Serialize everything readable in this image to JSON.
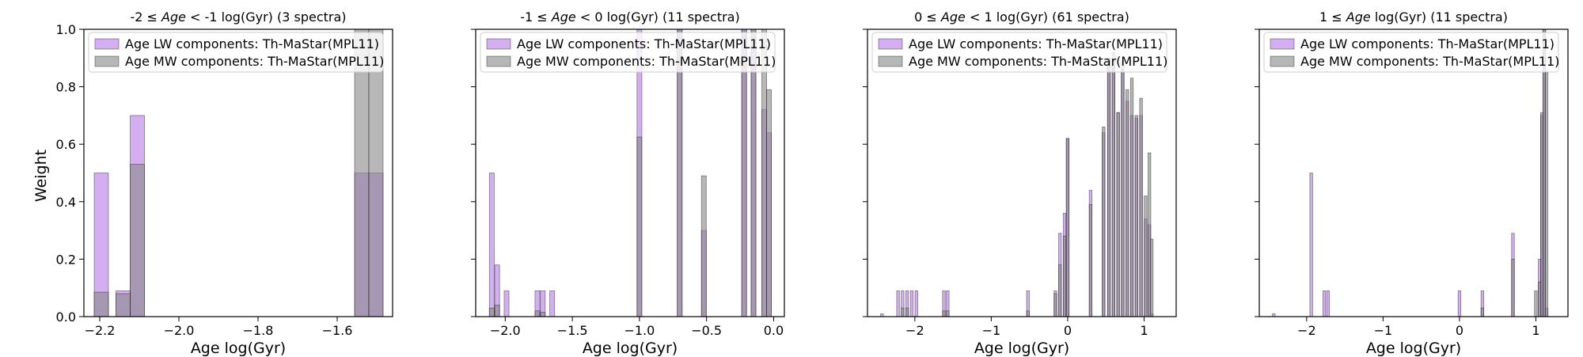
{
  "figure": {
    "ylabel": "Weight"
  },
  "legend": {
    "lw_label": "Age LW components: Th-MaStar(MPL11)",
    "mw_label": "Age MW components: Th-MaStar(MPL11)"
  },
  "colors": {
    "lw": "#b87ee8",
    "mw": "#8a8a8a",
    "overlap": "#7f5aa0"
  },
  "chart_data": [
    {
      "type": "bar",
      "title_parts": [
        "-2 ≤ ",
        "Age",
        " < -1 log(Gyr) (3 spectra)"
      ],
      "xlabel": "Age log(Gyr)",
      "ylabel": "Weight",
      "xlim": [
        -2.24,
        -1.46
      ],
      "ylim": [
        0,
        1.0
      ],
      "xticks": [
        -2.2,
        -2.0,
        -1.8,
        -1.6
      ],
      "xticklabels": [
        "−2.2",
        "−2.0",
        "−1.8",
        "−1.6"
      ],
      "yticks": [
        0,
        0.2,
        0.4,
        0.6,
        0.8,
        1.0
      ],
      "yticklabels": [
        "0.0",
        "0.2",
        "0.4",
        "0.6",
        "0.8",
        "1.0"
      ],
      "show_yticklabels": true,
      "bin_width": 0.036,
      "legend_position": "upper left",
      "series": [
        {
          "name": "Age LW components: Th-MaStar(MPL11)",
          "x": [
            -2.196,
            -2.141,
            -2.105,
            -1.538,
            -1.502
          ],
          "values": [
            0.5,
            0.09,
            0.7,
            0.5,
            0.5
          ]
        },
        {
          "name": "Age MW components: Th-MaStar(MPL11)",
          "x": [
            -2.196,
            -2.141,
            -2.105,
            -1.538,
            -1.502
          ],
          "values": [
            0.085,
            0.08,
            0.53,
            1.0,
            1.0
          ]
        }
      ]
    },
    {
      "type": "bar",
      "title_parts": [
        "-1 ≤ ",
        "Age",
        " < 0 log(Gyr) (11 spectra)"
      ],
      "xlabel": "Age log(Gyr)",
      "ylabel": "",
      "xlim": [
        -2.22,
        0.08
      ],
      "ylim": [
        0,
        1.0
      ],
      "xticks": [
        -2.0,
        -1.5,
        -1.0,
        -0.5,
        0.0
      ],
      "xticklabels": [
        "−2.0",
        "−1.5",
        "−1.0",
        "−0.5",
        "0.0"
      ],
      "yticks": [
        0,
        0.2,
        0.4,
        0.6,
        0.8,
        1.0
      ],
      "show_yticklabels": false,
      "bin_width": 0.036,
      "legend_position": "upper left",
      "series": [
        {
          "name": "Age LW components: Th-MaStar(MPL11)",
          "x": [
            -2.1,
            -2.06,
            -1.99,
            -1.76,
            -1.72,
            -1.65,
            -1.0,
            -0.7,
            -0.52,
            -0.22,
            -0.15,
            -0.07,
            -0.035
          ],
          "values": [
            0.5,
            0.18,
            0.09,
            0.09,
            0.09,
            0.09,
            1.0,
            1.0,
            0.3,
            1.0,
            1.0,
            0.72,
            0.64
          ]
        },
        {
          "name": "Age MW components: Th-MaStar(MPL11)",
          "x": [
            -2.1,
            -2.06,
            -1.76,
            -1.72,
            -1.0,
            -0.7,
            -0.52,
            -0.22,
            -0.15,
            -0.07,
            -0.035
          ],
          "values": [
            0.03,
            0.04,
            0.02,
            0.015,
            0.625,
            1.0,
            0.49,
            1.0,
            1.0,
            1.0,
            0.79
          ]
        }
      ]
    },
    {
      "type": "bar",
      "title_parts": [
        "0 ≤ ",
        "Age",
        " < 1 log(Gyr) (61 spectra)"
      ],
      "xlabel": "Age log(Gyr)",
      "ylabel": "",
      "xlim": [
        -2.62,
        1.42
      ],
      "ylim": [
        0,
        1.0
      ],
      "xticks": [
        -2,
        -1,
        0,
        1
      ],
      "xticklabels": [
        "−2",
        "−1",
        "0",
        "1"
      ],
      "yticks": [
        0,
        0.2,
        0.4,
        0.6,
        0.8,
        1.0
      ],
      "show_yticklabels": false,
      "bin_width": 0.036,
      "legend_position": "upper left",
      "series": [
        {
          "name": "Age LW components: Th-MaStar(MPL11)",
          "x": [
            -2.43,
            -2.22,
            -2.16,
            -2.1,
            -2.04,
            -1.98,
            -1.62,
            -1.57,
            -0.52,
            -0.16,
            -0.1,
            -0.04,
            0.0,
            0.3,
            0.47,
            0.54,
            0.6,
            0.66,
            0.72,
            0.78,
            0.84,
            0.9,
            0.96,
            1.02,
            1.07,
            1.1
          ],
          "values": [
            0.01,
            0.09,
            0.09,
            0.09,
            0.09,
            0.09,
            0.09,
            0.09,
            0.09,
            0.09,
            0.29,
            0.36,
            0.62,
            0.44,
            0.64,
            0.9,
            0.89,
            0.71,
            0.86,
            0.75,
            0.7,
            0.69,
            0.7,
            0.34,
            0.32,
            0.01
          ]
        },
        {
          "name": "Age MW components: Th-MaStar(MPL11)",
          "x": [
            -2.16,
            -2.1,
            -1.62,
            -1.57,
            -0.52,
            -0.16,
            -0.1,
            -0.04,
            0.0,
            0.3,
            0.47,
            0.54,
            0.6,
            0.66,
            0.72,
            0.78,
            0.84,
            0.9,
            0.96,
            1.02,
            1.07,
            1.1
          ],
          "values": [
            0.03,
            0.03,
            0.02,
            0.02,
            0.02,
            0.08,
            0.18,
            0.28,
            0.62,
            0.39,
            0.66,
            0.9,
            0.92,
            0.71,
            0.89,
            0.79,
            0.83,
            0.7,
            0.76,
            0.42,
            0.57,
            0.27
          ]
        }
      ]
    },
    {
      "type": "bar",
      "title_parts": [
        "1 ≤ ",
        "Age",
        " log(Gyr) (11 spectra)"
      ],
      "xlabel": "Age log(Gyr)",
      "ylabel": "",
      "xlim": [
        -2.62,
        1.42
      ],
      "ylim": [
        0,
        1.0
      ],
      "xticks": [
        -2,
        -1,
        0,
        1
      ],
      "xticklabels": [
        "−2",
        "−1",
        "0",
        "1"
      ],
      "yticks": [
        0,
        0.2,
        0.4,
        0.6,
        0.8,
        1.0
      ],
      "show_yticklabels": false,
      "bin_width": 0.036,
      "legend_position": "upper left",
      "series": [
        {
          "name": "Age LW components: Th-MaStar(MPL11)",
          "x": [
            -2.43,
            -1.94,
            -1.77,
            -1.72,
            0.0,
            0.3,
            0.7,
            1.05,
            1.08,
            1.11,
            1.14
          ],
          "values": [
            0.01,
            0.5,
            0.09,
            0.09,
            0.09,
            0.09,
            0.29,
            0.2,
            0.7,
            1.0,
            0.03
          ]
        },
        {
          "name": "Age MW components: Th-MaStar(MPL11)",
          "x": [
            0.3,
            0.7,
            1.0,
            1.05,
            1.08,
            1.11,
            1.14
          ],
          "values": [
            0.03,
            0.2,
            0.09,
            0.12,
            0.71,
            1.0,
            0.85
          ]
        }
      ]
    }
  ]
}
